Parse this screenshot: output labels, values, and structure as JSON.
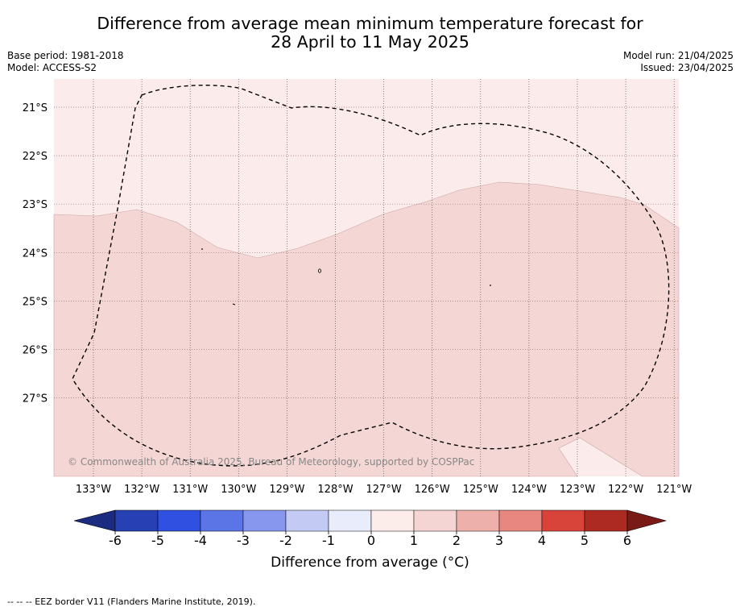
{
  "title_line1": "Difference from average mean minimum temperature forecast for",
  "title_line2": "28 April to 11 May 2025",
  "base_period": "Base period: 1981-2018",
  "model": "Model: ACCESS-S2",
  "model_run": "Model run: 21/04/2025",
  "issued": "Issued: 23/04/2025",
  "copyright": "© Commonwealth of Australia 2025, Bureau of Meteorology, supported by COSPPac",
  "lon_labels": [
    "133°W",
    "132°W",
    "131°W",
    "130°W",
    "129°W",
    "128°W",
    "127°W",
    "126°W",
    "125°W",
    "124°W",
    "123°W",
    "122°W",
    "121°W"
  ],
  "lat_labels": [
    "21°S",
    "22°S",
    "23°S",
    "24°S",
    "25°S",
    "26°S",
    "27°S"
  ],
  "colorbar": {
    "ticks": [
      "-6",
      "-5",
      "-4",
      "-3",
      "-2",
      "-1",
      "0",
      "1",
      "2",
      "3",
      "4",
      "5",
      "6"
    ],
    "colors": [
      "#1a2b80",
      "#2741b5",
      "#2f50e0",
      "#5b74e6",
      "#8797ee",
      "#c3cbf5",
      "#e8ecfb",
      "#fcecea",
      "#f5d5d3",
      "#eeb0aa",
      "#e8877f",
      "#d9443a",
      "#ad2a22",
      "#7a1a17"
    ],
    "label": "Difference from average (°C)"
  },
  "map_colors": {
    "zero_to_one": "#fbebea",
    "one_to_two": "#f4d6d4"
  },
  "footer": "--  --  -- EEZ border V11 (Flanders Marine Institute, 2019)."
}
